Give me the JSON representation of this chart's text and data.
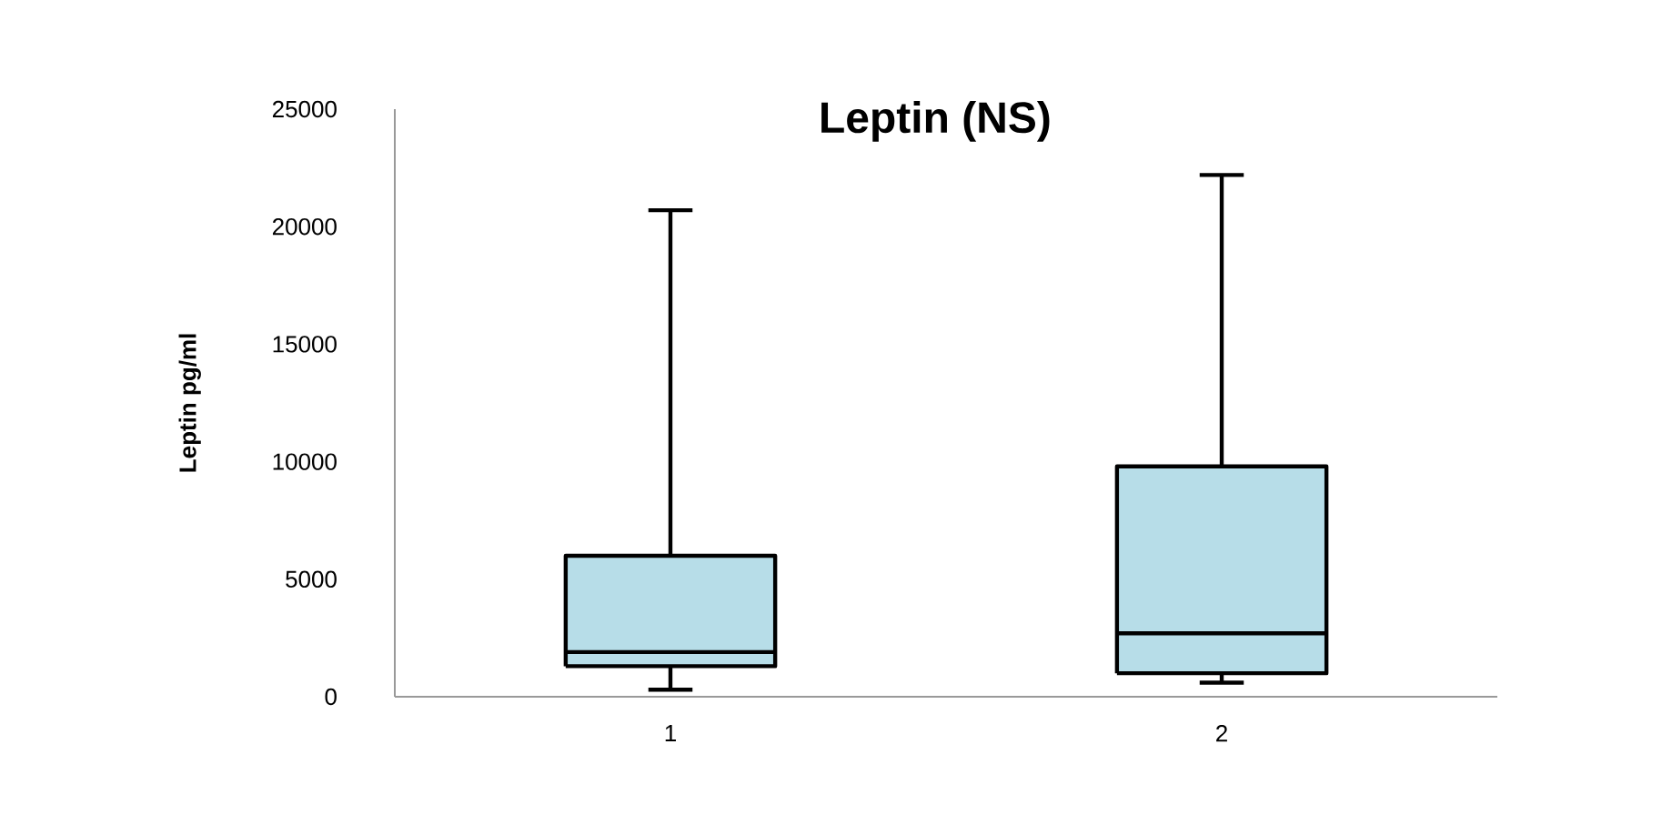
{
  "chart_data": {
    "type": "box",
    "title": "Leptin (NS)",
    "ylabel": "Leptin  pg/ml",
    "categories": [
      "1",
      "2"
    ],
    "color": "#b7dde8",
    "boxes": [
      {
        "low": 300,
        "q1": 1300,
        "median": 1900,
        "q3": 6000,
        "high": 20700
      },
      {
        "low": 600,
        "q1": 1000,
        "median": 2700,
        "q3": 9800,
        "high": 22200
      }
    ],
    "ylim": [
      0,
      25000
    ],
    "yticks": [
      0,
      5000,
      10000,
      15000,
      20000,
      25000
    ]
  }
}
